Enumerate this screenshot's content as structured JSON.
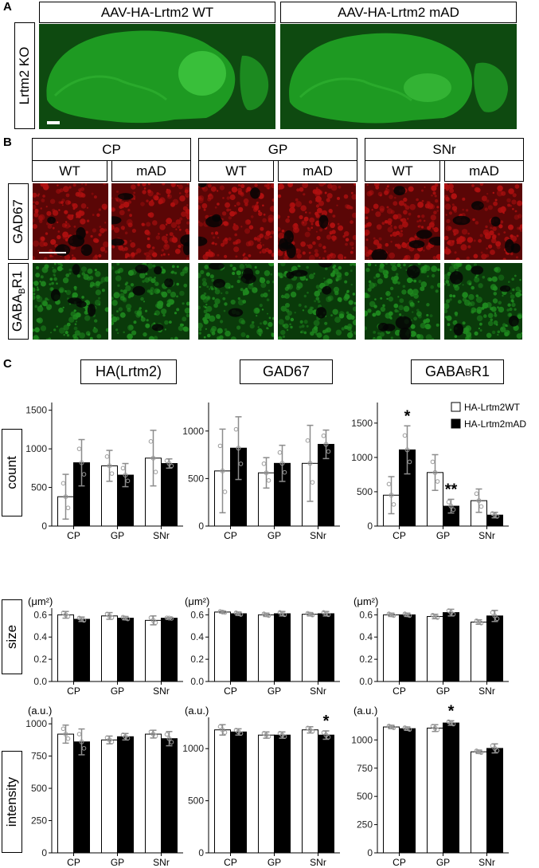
{
  "panelA": {
    "label": "A",
    "row_label": "Lrtm2 KO",
    "headers": [
      "AAV-HA-Lrtm2 WT",
      "AAV-HA-Lrtm2 mAD"
    ]
  },
  "panelB": {
    "label": "B",
    "regions": [
      "CP",
      "GP",
      "SNr"
    ],
    "conditions": [
      "WT",
      "mAD"
    ],
    "row_gad": "GAD67",
    "row_gaba_pre": "GABA",
    "row_gaba_sub": "B",
    "row_gaba_post": "R1"
  },
  "panelC": {
    "label": "C",
    "col_titles": [
      {
        "pre": "HA(Lrtm2)",
        "sub": "",
        "post": ""
      },
      {
        "pre": "GAD67",
        "sub": "",
        "post": ""
      },
      {
        "pre": "GABA",
        "sub": "B",
        "post": "R1"
      }
    ],
    "row_labels": [
      "count",
      "size",
      "intensity"
    ],
    "unit_size": "(μm²)",
    "unit_intensity": "(a.u.)",
    "legend": [
      "HA-Lrtm2WT",
      "HA-Lrtm2mAD"
    ]
  },
  "colors": {
    "wt": "#ffffff",
    "mad": "#000000",
    "err": "#8c8c8c",
    "pt": "#9a9a9a",
    "gfp": "#1f8a1f",
    "red": "#b01010"
  },
  "chart_data": [
    {
      "type": "bar",
      "row": "count",
      "col": "HA(Lrtm2)",
      "categories": [
        "CP",
        "GP",
        "SNr"
      ],
      "ylim": [
        0,
        1600
      ],
      "yticks": [
        0,
        500,
        1000,
        1500
      ],
      "series": [
        {
          "name": "HA-Lrtm2WT",
          "values": [
            380,
            780,
            880
          ]
        },
        {
          "name": "HA-Lrtm2mAD",
          "values": [
            820,
            660,
            810
          ]
        }
      ],
      "errors": [
        [
          290,
          200,
          360
        ],
        [
          300,
          150,
          60
        ]
      ],
      "stars": []
    },
    {
      "type": "bar",
      "row": "count",
      "col": "GAD67",
      "categories": [
        "CP",
        "GP",
        "SNr"
      ],
      "ylim": [
        0,
        1300
      ],
      "yticks": [
        0,
        500,
        1000
      ],
      "series": [
        {
          "name": "HA-Lrtm2WT",
          "values": [
            580,
            560,
            660
          ]
        },
        {
          "name": "HA-Lrtm2mAD",
          "values": [
            820,
            660,
            860
          ]
        }
      ],
      "errors": [
        [
          440,
          160,
          400
        ],
        [
          330,
          190,
          150
        ]
      ],
      "stars": []
    },
    {
      "type": "bar",
      "row": "count",
      "col": "GABABR1",
      "categories": [
        "CP",
        "GP",
        "SNr"
      ],
      "ylim": [
        0,
        1800
      ],
      "yticks": [
        0,
        500,
        1000,
        1500
      ],
      "series": [
        {
          "name": "HA-Lrtm2WT",
          "values": [
            450,
            780,
            370
          ]
        },
        {
          "name": "HA-Lrtm2mAD",
          "values": [
            1110,
            290,
            160
          ]
        }
      ],
      "errors": [
        [
          270,
          260,
          170
        ],
        [
          350,
          100,
          40
        ]
      ],
      "stars": [
        {
          "series": 1,
          "cat": 0,
          "text": "*"
        },
        {
          "series": 1,
          "cat": 1,
          "text": "**"
        }
      ]
    },
    {
      "type": "bar",
      "row": "size",
      "col": "HA(Lrtm2)",
      "categories": [
        "CP",
        "GP",
        "SNr"
      ],
      "ylim": [
        0,
        0.66
      ],
      "yticks": [
        0.0,
        0.2,
        0.4,
        0.6
      ],
      "series": [
        {
          "name": "HA-Lrtm2WT",
          "values": [
            0.6,
            0.59,
            0.55
          ]
        },
        {
          "name": "HA-Lrtm2mAD",
          "values": [
            0.56,
            0.57,
            0.57
          ]
        }
      ],
      "errors": [
        [
          0.03,
          0.03,
          0.04
        ],
        [
          0.02,
          0.015,
          0.005
        ]
      ],
      "stars": []
    },
    {
      "type": "bar",
      "row": "size",
      "col": "GAD67",
      "categories": [
        "CP",
        "GP",
        "SNr"
      ],
      "ylim": [
        0,
        0.66
      ],
      "yticks": [
        0.0,
        0.2,
        0.4,
        0.6
      ],
      "series": [
        {
          "name": "HA-Lrtm2WT",
          "values": [
            0.625,
            0.6,
            0.605
          ]
        },
        {
          "name": "HA-Lrtm2mAD",
          "values": [
            0.61,
            0.61,
            0.61
          ]
        }
      ],
      "errors": [
        [
          0.01,
          0.015,
          0.015
        ],
        [
          0.015,
          0.02,
          0.02
        ]
      ],
      "stars": []
    },
    {
      "type": "bar",
      "row": "size",
      "col": "GABABR1",
      "categories": [
        "CP",
        "GP",
        "SNr"
      ],
      "ylim": [
        0,
        0.66
      ],
      "yticks": [
        0.0,
        0.2,
        0.4,
        0.6
      ],
      "series": [
        {
          "name": "HA-Lrtm2WT",
          "values": [
            0.6,
            0.585,
            0.535
          ]
        },
        {
          "name": "HA-Lrtm2mAD",
          "values": [
            0.6,
            0.62,
            0.59
          ]
        }
      ],
      "errors": [
        [
          0.015,
          0.02,
          0.02
        ],
        [
          0.015,
          0.03,
          0.05
        ]
      ],
      "stars": []
    },
    {
      "type": "bar",
      "row": "intensity",
      "col": "HA(Lrtm2)",
      "categories": [
        "CP",
        "GP",
        "SNr"
      ],
      "ylim": [
        0,
        1050
      ],
      "yticks": [
        0,
        250,
        500,
        750,
        1000
      ],
      "series": [
        {
          "name": "HA-Lrtm2WT",
          "values": [
            920,
            875,
            920
          ]
        },
        {
          "name": "HA-Lrtm2mAD",
          "values": [
            860,
            900,
            885
          ]
        }
      ],
      "errors": [
        [
          70,
          30,
          30
        ],
        [
          100,
          25,
          55
        ]
      ],
      "stars": []
    },
    {
      "type": "bar",
      "row": "intensity",
      "col": "GAD67",
      "categories": [
        "CP",
        "GP",
        "SNr"
      ],
      "ylim": [
        0,
        1300
      ],
      "yticks": [
        0,
        500,
        1000
      ],
      "series": [
        {
          "name": "HA-Lrtm2WT",
          "values": [
            1180,
            1130,
            1180
          ]
        },
        {
          "name": "HA-Lrtm2mAD",
          "values": [
            1160,
            1130,
            1130
          ]
        }
      ],
      "errors": [
        [
          50,
          30,
          30
        ],
        [
          30,
          30,
          40
        ]
      ],
      "stars": [
        {
          "series": 1,
          "cat": 2,
          "text": "*"
        }
      ]
    },
    {
      "type": "bar",
      "row": "intensity",
      "col": "GABABR1",
      "categories": [
        "CP",
        "GP",
        "SNr"
      ],
      "ylim": [
        0,
        1200
      ],
      "yticks": [
        0,
        250,
        500,
        750,
        1000
      ],
      "series": [
        {
          "name": "HA-Lrtm2WT",
          "values": [
            1115,
            1105,
            895
          ]
        },
        {
          "name": "HA-Lrtm2mAD",
          "values": [
            1100,
            1150,
            925
          ]
        }
      ],
      "errors": [
        [
          15,
          30,
          15
        ],
        [
          15,
          20,
          40
        ]
      ],
      "stars": [
        {
          "series": 1,
          "cat": 1,
          "text": "*"
        }
      ]
    }
  ]
}
